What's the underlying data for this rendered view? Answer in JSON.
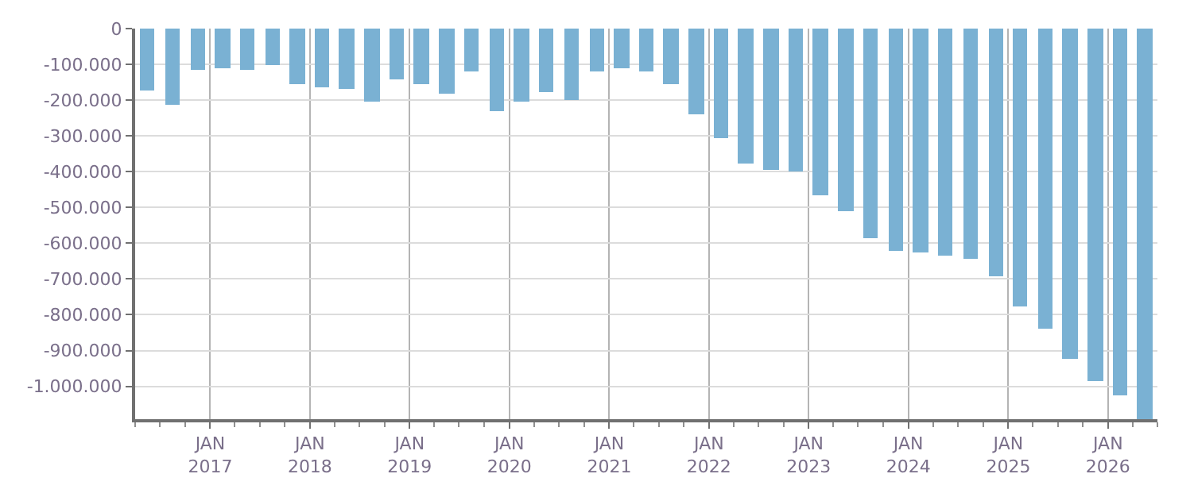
{
  "chart_data": {
    "type": "bar",
    "x": [
      "2016-05-16",
      "2016-08-16",
      "2016-11-16",
      "2017-02-14",
      "2017-05-16",
      "2017-08-16",
      "2017-11-16",
      "2018-02-14",
      "2018-05-16",
      "2018-08-16",
      "2018-11-16",
      "2019-02-14",
      "2019-05-16",
      "2019-08-16",
      "2019-11-16",
      "2020-02-14",
      "2020-05-16",
      "2020-08-16",
      "2020-11-16",
      "2021-02-14",
      "2021-05-16",
      "2021-08-16",
      "2021-11-16",
      "2022-02-14",
      "2022-05-16",
      "2022-08-16",
      "2022-11-16",
      "2023-02-14",
      "2023-05-16",
      "2023-08-16",
      "2023-11-16",
      "2024-02-14",
      "2024-05-16",
      "2024-08-16",
      "2024-11-16",
      "2025-02-14",
      "2025-05-16",
      "2025-08-16",
      "2025-11-16",
      "2026-02-14",
      "2026-05-16"
    ],
    "values": [
      -171000,
      -212000,
      -114000,
      -110000,
      -114000,
      -102000,
      -155000,
      -163000,
      -167000,
      -204000,
      -143000,
      -155000,
      -180000,
      -118000,
      -229000,
      -204000,
      -176000,
      -200000,
      -118000,
      -110000,
      -118000,
      -155000,
      -241000,
      -306000,
      -376000,
      -396000,
      -400000,
      -465000,
      -510000,
      -588000,
      -620000,
      -624000,
      -633000,
      -645000,
      -694000,
      -776000,
      -841000,
      -922000,
      -984000,
      -1025000,
      -1090000
    ],
    "color": "#7ab1d3",
    "xlim": [
      "2016-04-01",
      "2026-07-01"
    ],
    "ylim": [
      -1092000,
      0
    ],
    "xticks": [
      {
        "value": "2017-01-01",
        "label": "JAN\n2017"
      },
      {
        "value": "2018-01-01",
        "label": "JAN\n2018"
      },
      {
        "value": "2019-01-01",
        "label": "JAN\n2019"
      },
      {
        "value": "2020-01-01",
        "label": "JAN\n2020"
      },
      {
        "value": "2021-01-01",
        "label": "JAN\n2021"
      },
      {
        "value": "2022-01-01",
        "label": "JAN\n2022"
      },
      {
        "value": "2023-01-01",
        "label": "JAN\n2023"
      },
      {
        "value": "2024-01-01",
        "label": "JAN\n2024"
      },
      {
        "value": "2025-01-01",
        "label": "JAN\n2025"
      },
      {
        "value": "2026-01-01",
        "label": "JAN\n2026"
      }
    ],
    "yticks": [
      0,
      {
        "value": -100000,
        "label": "-100.000"
      },
      {
        "value": -200000,
        "label": "-200.000"
      },
      {
        "value": -300000,
        "label": "-300.000"
      },
      {
        "value": -400000,
        "label": "-400.000"
      },
      {
        "value": -500000,
        "label": "-500.000"
      },
      {
        "value": -600000,
        "label": "-600.000"
      },
      {
        "value": -700000,
        "label": "-700.000"
      },
      {
        "value": -800000,
        "label": "-800.000"
      },
      {
        "value": -900000,
        "label": "-900.000"
      },
      {
        "value": -1000000,
        "label": "-1.000.000"
      }
    ],
    "grid": true
  }
}
